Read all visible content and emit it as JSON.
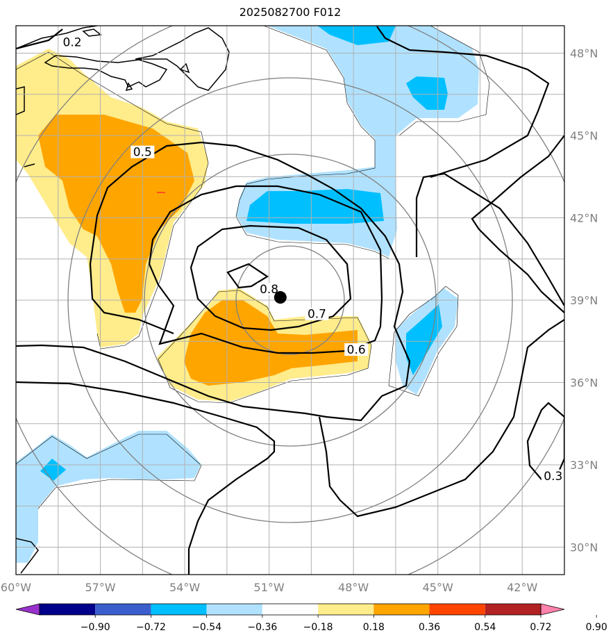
{
  "title": "2025082700 F012",
  "map": {
    "lon_range": [
      -60,
      -40.5
    ],
    "lat_range": [
      29,
      49
    ],
    "lon_ticks": [
      {
        "value": -60,
        "label": "60°W"
      },
      {
        "value": -57,
        "label": "57°W"
      },
      {
        "value": -54,
        "label": "54°W"
      },
      {
        "value": -51,
        "label": "51°W"
      },
      {
        "value": -48,
        "label": "48°W"
      },
      {
        "value": -45,
        "label": "45°W"
      },
      {
        "value": -42,
        "label": "42°W"
      }
    ],
    "lat_ticks": [
      {
        "value": 48,
        "label": "48°N"
      },
      {
        "value": 45,
        "label": "45°N"
      },
      {
        "value": 42,
        "label": "42°N"
      },
      {
        "value": 39,
        "label": "39°N"
      },
      {
        "value": 36,
        "label": "36°N"
      },
      {
        "value": 33,
        "label": "33°N"
      },
      {
        "value": 30,
        "label": "30°N"
      }
    ],
    "center_marker": {
      "lon": -50.6,
      "lat": 39.1
    },
    "contour_labels": [
      {
        "text": "0.2",
        "lon": -58.0,
        "lat": 48.3
      },
      {
        "text": "0.5",
        "lon": -55.5,
        "lat": 44.3
      },
      {
        "text": "0.8",
        "lon": -51.0,
        "lat": 39.3
      },
      {
        "text": "0.7",
        "lon": -49.3,
        "lat": 38.4
      },
      {
        "text": "0.6",
        "lon": -47.9,
        "lat": 37.1
      },
      {
        "text": "0.3",
        "lon": -40.9,
        "lat": 32.5
      }
    ]
  },
  "colorbar": {
    "colors": [
      "#9932cc",
      "#00008b",
      "#3a5fcd",
      "#00bfff",
      "#b0e2ff",
      "#ffffff",
      "#ffec8b",
      "#ffa500",
      "#ff4500",
      "#b22222",
      "#ff82ab"
    ],
    "labels": [
      "−0.90",
      "−0.72",
      "−0.54",
      "−0.36",
      "−0.18",
      "0.18",
      "0.36",
      "0.54",
      "0.72",
      "0.90"
    ]
  }
}
